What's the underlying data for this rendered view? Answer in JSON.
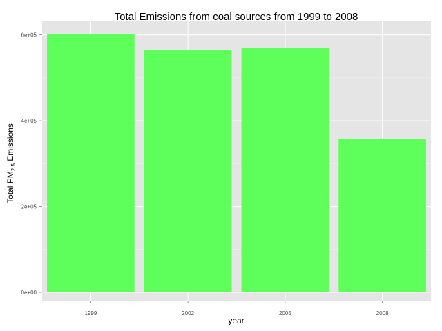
{
  "chart_data": {
    "type": "bar",
    "title": "Total Emissions from coal sources from 1999 to 2008",
    "xlabel": "year",
    "ylabel_parts": {
      "prefix": "Total PM",
      "subscript": "2.5",
      "suffix": " Emissions"
    },
    "categories": [
      "1999",
      "2002",
      "2005",
      "2008"
    ],
    "values": [
      602624,
      564936,
      569654,
      358083
    ],
    "ylim": [
      0,
      630000
    ],
    "yticks": [
      0,
      200000,
      400000,
      600000
    ],
    "ytick_labels": [
      "0e+00",
      "2e+05",
      "4e+05",
      "6e+05"
    ],
    "grid": true,
    "legend": "none",
    "colors": {
      "bar": "#5fff5b",
      "panel": "#e5e5e5",
      "grid_major": "#ffffff",
      "grid_minor": "#f2f2f2",
      "tick_label": "#4d4d4d"
    }
  }
}
